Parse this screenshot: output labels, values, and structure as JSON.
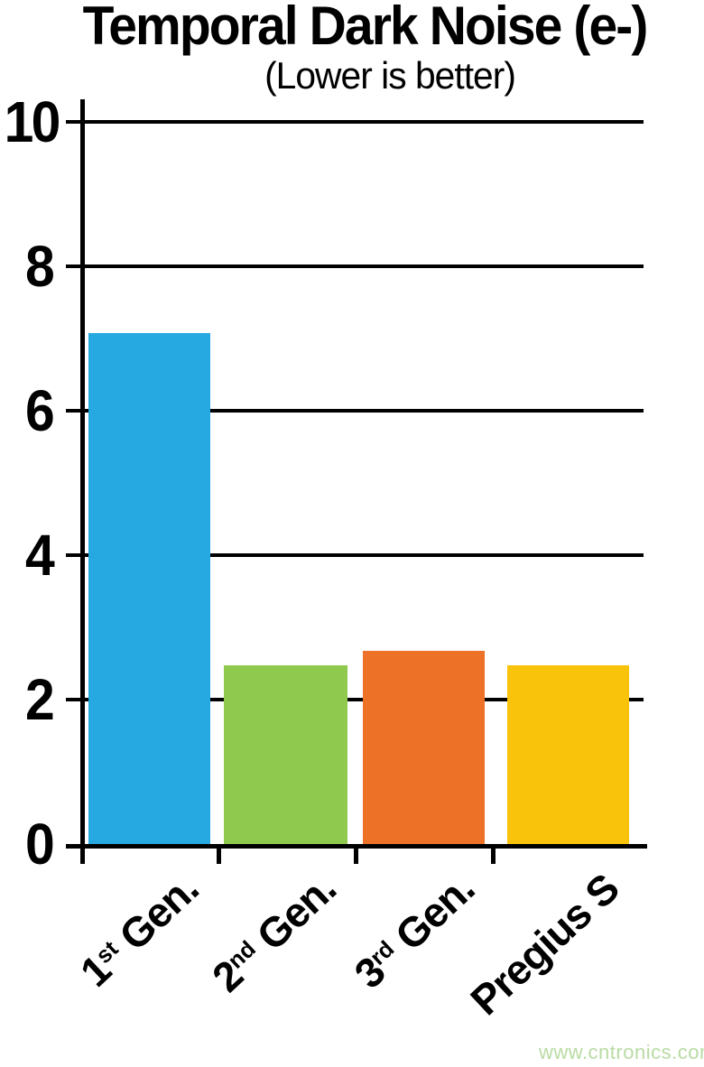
{
  "page": {
    "background": "#ffffff",
    "axis_color": "#000000"
  },
  "chart_data": {
    "type": "bar",
    "title": "Temporal Dark Noise (e-)",
    "subtitle": "(Lower is better)",
    "categories": [
      "1st Gen.",
      "2nd Gen.",
      "3rd Gen.",
      "Pregius S"
    ],
    "category_parts": [
      {
        "num": "1",
        "sup": "st",
        "rest": " Gen."
      },
      {
        "num": "2",
        "sup": "nd",
        "rest": " Gen."
      },
      {
        "num": "3",
        "sup": "rd",
        "rest": " Gen."
      },
      {
        "num": "",
        "sup": "",
        "rest": "Pregius S"
      }
    ],
    "values": [
      7.1,
      2.5,
      2.7,
      2.5
    ],
    "bar_colors": [
      "#25A9E0",
      "#8FCA4E",
      "#EE7128",
      "#FAC30B"
    ],
    "ylabel": "",
    "xlabel": "",
    "ylim": [
      0,
      10
    ],
    "y_ticks": [
      10,
      8,
      6,
      4,
      2,
      0
    ],
    "grid": true,
    "legend": "none",
    "x_labels_rotation_deg": 43
  },
  "watermark": {
    "text": "www.cntronics.com",
    "color": "#B9DBA4"
  }
}
